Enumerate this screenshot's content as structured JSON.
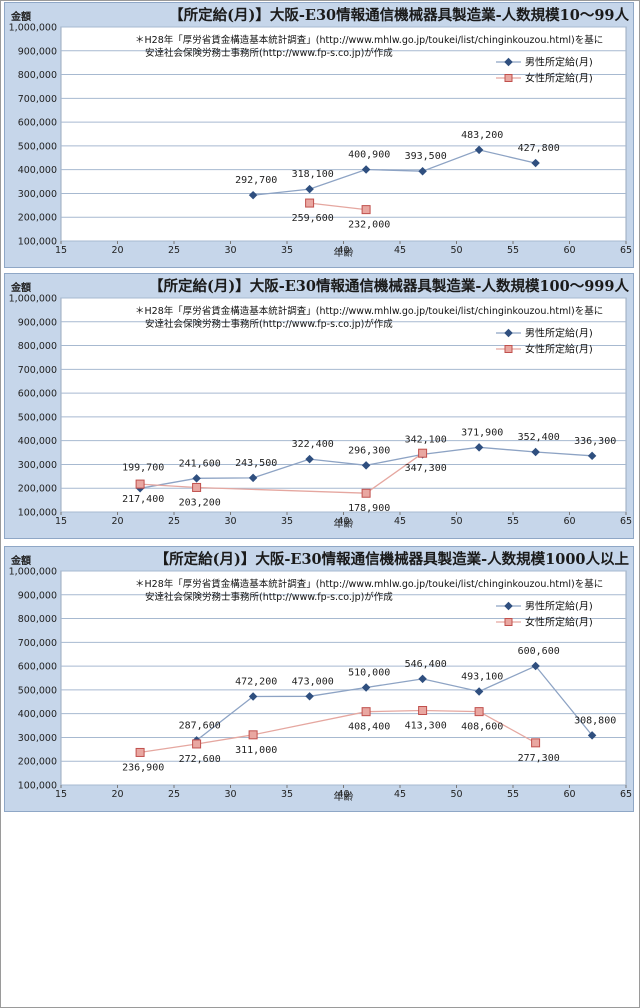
{
  "colors": {
    "male_line": "#8da3c4",
    "male_marker": "#2f4f7f",
    "female_line": "#e5a7a0",
    "female_marker": "#c0504d",
    "panel_bg": "#c6d6ea",
    "plot_bg": "#ffffff"
  },
  "chart_data": [
    {
      "type": "line",
      "title": "【所定給(月)】大阪-E30情報通信機械器具製造業-人数規模10～99人",
      "ylabel": "金額",
      "xlabel": "年齢",
      "xlim": [
        15,
        65
      ],
      "ylim": [
        100000,
        1000000
      ],
      "x_ticks": [
        "15",
        "20",
        "25",
        "30",
        "35",
        "40",
        "45",
        "50",
        "55",
        "60",
        "65"
      ],
      "y_ticks": [
        "1,000,000",
        "900,000",
        "800,000",
        "700,000",
        "600,000",
        "500,000",
        "400,000",
        "300,000",
        "200,000",
        "100,000"
      ],
      "note": [
        "＊H28年「厚労省賃金構造基本統計調査」(http://www.mhlw.go.jp/toukei/list/chinginkouzou.html)を基に",
        "安達社会保険労務士事務所(http://www.fp-s.co.jp)が作成"
      ],
      "legend_position": "top-right",
      "series": [
        {
          "name": "男性所定給(月)",
          "x": [
            32,
            37,
            42,
            47,
            52,
            57
          ],
          "values": [
            292700,
            318100,
            400900,
            393500,
            483200,
            427800
          ],
          "labels": [
            "292,700",
            "318,100",
            "400,900",
            "393,500",
            "483,200",
            "427,800"
          ]
        },
        {
          "name": "女性所定給(月)",
          "x": [
            37,
            42
          ],
          "values": [
            259600,
            232000
          ],
          "labels": [
            "259,600",
            "232,000"
          ]
        }
      ]
    },
    {
      "type": "line",
      "title": "【所定給(月)】大阪-E30情報通信機械器具製造業-人数規模100～999人",
      "ylabel": "金額",
      "xlabel": "年齢",
      "xlim": [
        15,
        65
      ],
      "ylim": [
        100000,
        1000000
      ],
      "x_ticks": [
        "15",
        "20",
        "25",
        "30",
        "35",
        "40",
        "45",
        "50",
        "55",
        "60",
        "65"
      ],
      "y_ticks": [
        "1,000,000",
        "900,000",
        "800,000",
        "700,000",
        "600,000",
        "500,000",
        "400,000",
        "300,000",
        "200,000",
        "100,000"
      ],
      "note": [
        "＊H28年「厚労省賃金構造基本統計調査」(http://www.mhlw.go.jp/toukei/list/chinginkouzou.html)を基に",
        "安達社会保険労務士事務所(http://www.fp-s.co.jp)が作成"
      ],
      "legend_position": "top-right",
      "series": [
        {
          "name": "男性所定給(月)",
          "x": [
            22,
            27,
            32,
            37,
            42,
            47,
            52,
            57,
            62
          ],
          "values": [
            199700,
            241600,
            243500,
            322400,
            296300,
            342100,
            371900,
            352400,
            336300
          ],
          "labels": [
            "199,700",
            "241,600",
            "243,500",
            "322,400",
            "296,300",
            "342,100",
            "371,900",
            "352,400",
            "336,300"
          ]
        },
        {
          "name": "女性所定給(月)",
          "x": [
            22,
            27,
            42,
            47
          ],
          "values": [
            217400,
            203200,
            178900,
            347300
          ],
          "labels": [
            "217,400",
            "203,200",
            "178,900",
            "347,300"
          ]
        }
      ]
    },
    {
      "type": "line",
      "title": "【所定給(月)】大阪-E30情報通信機械器具製造業-人数規模1000人以上",
      "ylabel": "金額",
      "xlabel": "年齢",
      "xlim": [
        15,
        65
      ],
      "ylim": [
        100000,
        1000000
      ],
      "x_ticks": [
        "15",
        "20",
        "25",
        "30",
        "35",
        "40",
        "45",
        "50",
        "55",
        "60",
        "65"
      ],
      "y_ticks": [
        "1,000,000",
        "900,000",
        "800,000",
        "700,000",
        "600,000",
        "500,000",
        "400,000",
        "300,000",
        "200,000",
        "100,000"
      ],
      "note": [
        "＊H28年「厚労省賃金構造基本統計調査」(http://www.mhlw.go.jp/toukei/list/chinginkouzou.html)を基に",
        "安達社会保険労務士事務所(http://www.fp-s.co.jp)が作成"
      ],
      "legend_position": "top-right",
      "series": [
        {
          "name": "男性所定給(月)",
          "x": [
            27,
            32,
            37,
            42,
            47,
            52,
            57,
            62
          ],
          "values": [
            287600,
            472200,
            473000,
            510000,
            546400,
            493100,
            600600,
            308800
          ],
          "labels": [
            "287,600",
            "472,200",
            "473,000",
            "510,000",
            "546,400",
            "493,100",
            "600,600",
            "308,800"
          ]
        },
        {
          "name": "女性所定給(月)",
          "x": [
            22,
            27,
            32,
            42,
            47,
            52,
            57
          ],
          "values": [
            236900,
            272600,
            311000,
            408400,
            413300,
            408600,
            277300
          ],
          "labels": [
            "236,900",
            "272,600",
            "311,000",
            "408,400",
            "413,300",
            "408,600",
            "277,300"
          ]
        }
      ]
    }
  ]
}
